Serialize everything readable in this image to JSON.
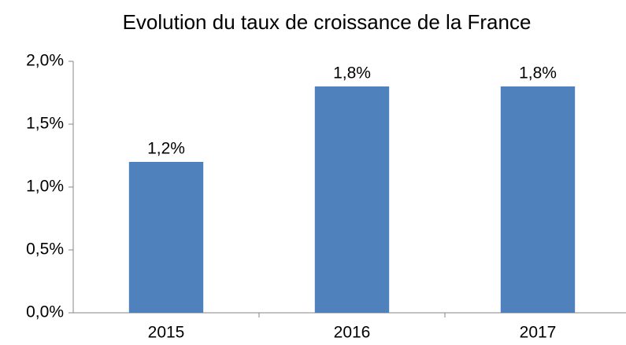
{
  "chart_data": {
    "type": "bar",
    "title": "Evolution du taux de croissance de la France",
    "categories": [
      "2015",
      "2016",
      "2017"
    ],
    "values": [
      1.2,
      1.8,
      1.8
    ],
    "value_labels": [
      "1,2%",
      "1,8%",
      "1,8%"
    ],
    "color": "#4f81bd",
    "ylim": [
      0,
      2
    ],
    "yticks": [
      {
        "value": 0,
        "label": "0,0%"
      },
      {
        "value": 0.5,
        "label": "0,5%"
      },
      {
        "value": 1,
        "label": "1,0%"
      },
      {
        "value": 1.5,
        "label": "1,5%"
      },
      {
        "value": 2,
        "label": "2,0%"
      }
    ],
    "grid": false
  }
}
